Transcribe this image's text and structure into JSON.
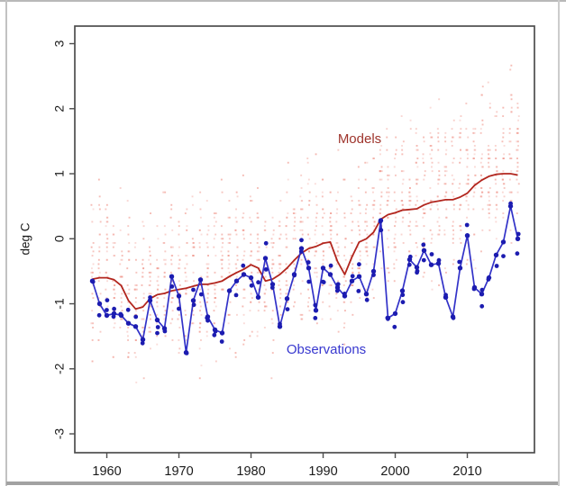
{
  "window": {
    "background": "#ffffff",
    "frame_border_color": "#b9b9b9",
    "bottom_bar_color": "#a2a2a2"
  },
  "chart_data": {
    "type": "line",
    "title": "",
    "xlabel": "",
    "ylabel": "deg C",
    "grid": false,
    "legend_position": "inline-annotations",
    "xlim": [
      1955.56,
      2019.31
    ],
    "ylim": [
      -3.29,
      3.27
    ],
    "x_ticks": [
      "1960",
      "1970",
      "1980",
      "1990",
      "2000",
      "2010"
    ],
    "x_tick_values": [
      1960,
      1970,
      1980,
      1990,
      2000,
      2010
    ],
    "y_ticks": [
      "3",
      "2",
      "1",
      "0",
      "-1",
      "-2",
      "-3"
    ],
    "y_tick_values": [
      3,
      2,
      1,
      0,
      -1,
      -2,
      -3
    ],
    "years": [
      1958,
      1959,
      1960,
      1961,
      1962,
      1963,
      1964,
      1965,
      1966,
      1967,
      1968,
      1969,
      1970,
      1971,
      1972,
      1973,
      1974,
      1975,
      1976,
      1977,
      1978,
      1979,
      1980,
      1981,
      1982,
      1983,
      1984,
      1985,
      1986,
      1987,
      1988,
      1989,
      1990,
      1991,
      1992,
      1993,
      1994,
      1995,
      1996,
      1997,
      1998,
      1999,
      2000,
      2001,
      2002,
      2003,
      2004,
      2005,
      2006,
      2007,
      2008,
      2009,
      2010,
      2011,
      2012,
      2013,
      2014,
      2015,
      2016,
      2017
    ],
    "series": [
      {
        "name": "models-mean",
        "label": "Models",
        "style": "line",
        "color": "#b2261e",
        "label_color": "#9e342c",
        "values": [
          -0.62,
          -0.6,
          -0.6,
          -0.63,
          -0.72,
          -0.95,
          -1.08,
          -1.05,
          -0.92,
          -0.86,
          -0.84,
          -0.8,
          -0.78,
          -0.76,
          -0.73,
          -0.7,
          -0.7,
          -0.68,
          -0.65,
          -0.58,
          -0.52,
          -0.47,
          -0.4,
          -0.45,
          -0.65,
          -0.62,
          -0.55,
          -0.45,
          -0.33,
          -0.22,
          -0.15,
          -0.12,
          -0.07,
          -0.05,
          -0.35,
          -0.55,
          -0.28,
          -0.05,
          0.0,
          0.1,
          0.3,
          0.37,
          0.4,
          0.44,
          0.45,
          0.46,
          0.52,
          0.56,
          0.58,
          0.6,
          0.6,
          0.64,
          0.7,
          0.82,
          0.9,
          0.96,
          0.99,
          1.0,
          1.0,
          0.98
        ]
      },
      {
        "name": "observations",
        "label": "Observations",
        "style": "line+points",
        "color": "#3232c8",
        "point_color": "#1c1cb0",
        "label_color": "#3838cf",
        "values": [
          -0.65,
          -1.0,
          -1.18,
          -1.15,
          -1.18,
          -1.3,
          -1.35,
          -1.55,
          -0.95,
          -1.25,
          -1.38,
          -0.58,
          -0.88,
          -1.75,
          -0.95,
          -0.63,
          -1.2,
          -1.4,
          -1.45,
          -0.8,
          -0.65,
          -0.55,
          -0.6,
          -0.9,
          -0.3,
          -0.7,
          -1.35,
          -0.92,
          -0.55,
          -0.15,
          -0.45,
          -1.1,
          -0.45,
          -0.55,
          -0.75,
          -0.88,
          -0.65,
          -0.58,
          -0.85,
          -0.5,
          0.28,
          -1.22,
          -1.15,
          -0.8,
          -0.32,
          -0.44,
          -0.18,
          -0.4,
          -0.38,
          -0.9,
          -1.2,
          -0.45,
          0.05,
          -0.75,
          -0.85,
          -0.6,
          -0.25,
          -0.05,
          0.5,
          0.0
        ]
      }
    ],
    "obs_dot_scatter": 0.24,
    "model_ensemble": {
      "name": "individual-model-runs",
      "color": "#f0998f",
      "dots_per_year": 24,
      "spread_sigma": 0.6,
      "skew_offset": 0.12,
      "value_step": 0.065,
      "description": "scatter of individual model simulation anomalies around the multi-model mean"
    }
  }
}
